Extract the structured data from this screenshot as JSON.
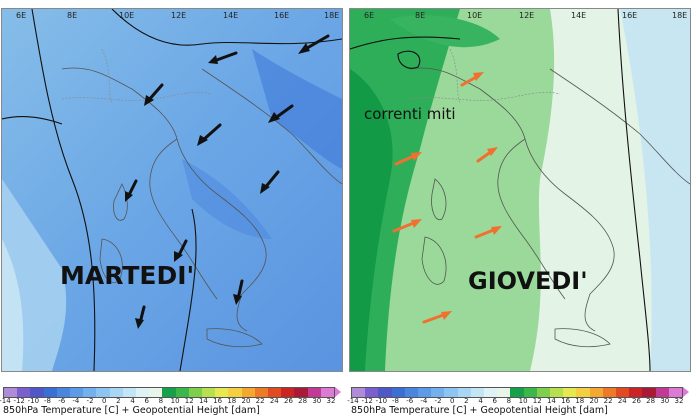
{
  "maps": [
    {
      "id": "left",
      "day_label": "MARTEDI'",
      "annotation": "",
      "lon_labels": [
        "6E",
        "8E",
        "10E",
        "12E",
        "14E",
        "16E",
        "18E"
      ],
      "arrow_color": "#111111",
      "wind_direction": "from north-east"
    },
    {
      "id": "right",
      "day_label": "GIOVEDI'",
      "annotation": "correnti miti",
      "lon_labels": [
        "6E",
        "8E",
        "10E",
        "12E",
        "14E",
        "16E",
        "18E"
      ],
      "arrow_color": "#f07030",
      "wind_direction": "from south-west"
    }
  ],
  "colorbar": {
    "title": "850hPa Temperature [C] + Geopotential Height [dam]",
    "ticks": [
      "-14",
      "-12",
      "-10",
      "-8",
      "-6",
      "-4",
      "-2",
      "0",
      "2",
      "4",
      "6",
      "8",
      "10",
      "12",
      "14",
      "16",
      "18",
      "20",
      "22",
      "24",
      "26",
      "28",
      "30",
      "32"
    ],
    "tick_string": "-14-12-10-8-6-4-2 0 2 4 6 8 10 12 14 16 18 20 22 24 26 28 30 32",
    "colors": [
      "#b08cd8",
      "#7b5fcf",
      "#4e58c9",
      "#3a6fd6",
      "#4a86e0",
      "#5c9be8",
      "#74b0ee",
      "#8ec4f2",
      "#a8d6f4",
      "#c3e6f6",
      "#dff2f6",
      "#e8f6ea",
      "#16a04a",
      "#3cb84a",
      "#7ed04c",
      "#b6e04e",
      "#e6ea50",
      "#f4d040",
      "#f4a830",
      "#ee7a28",
      "#e24a22",
      "#cc2424",
      "#aa1a36",
      "#c03a96",
      "#dd7ad6"
    ]
  }
}
